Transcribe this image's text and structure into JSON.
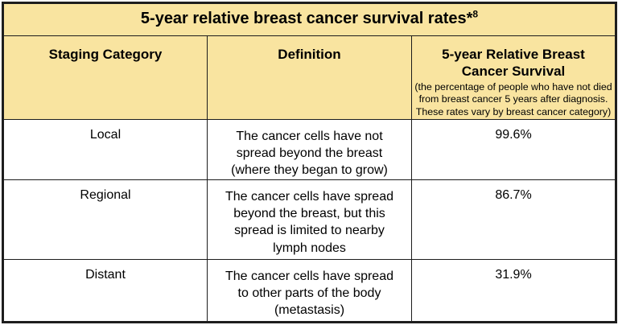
{
  "table": {
    "title": "5-year relative breast cancer survival rates*",
    "title_superscript": "8",
    "columns": [
      {
        "label": "Staging Category"
      },
      {
        "label": "Definition"
      },
      {
        "label": "5-year Relative Breast Cancer Survival",
        "note": "(the percentage of people who have not died from breast cancer 5 years after diagnosis. These rates vary by breast cancer category)"
      }
    ],
    "rows": [
      {
        "category": "Local",
        "definition": "The cancer cells have not spread beyond the breast (where they began to grow)",
        "survival_rate": "99.6%"
      },
      {
        "category": "Regional",
        "definition": "The cancer cells have spread beyond the breast, but this spread is limited to nearby lymph nodes",
        "survival_rate": "86.7%"
      },
      {
        "category": "Distant",
        "definition": "The cancer cells have spread to other parts of the body (metastasis)",
        "survival_rate": "31.9%"
      }
    ],
    "colors": {
      "header_bg": "#F9E4A0",
      "border": "#1C1C1C",
      "body_bg": "#FFFFFF"
    }
  }
}
